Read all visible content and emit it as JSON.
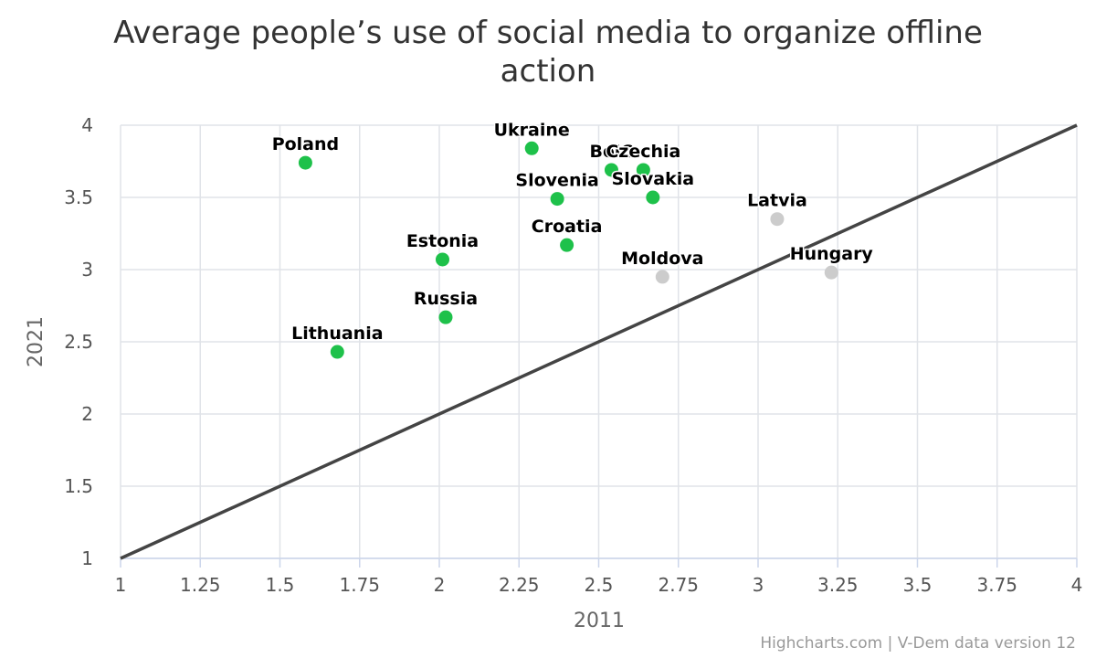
{
  "chart_data": {
    "type": "scatter",
    "title": "Average people’s use of social media to organize offline action",
    "xlabel": "2011",
    "ylabel": "2021",
    "xlim": [
      1,
      4
    ],
    "ylim": [
      1,
      4
    ],
    "x_ticks": [
      "1",
      "1.25",
      "1.5",
      "1.75",
      "2",
      "2.25",
      "2.5",
      "2.75",
      "3",
      "3.25",
      "3.5",
      "3.75",
      "4"
    ],
    "y_ticks": [
      "1",
      "1.5",
      "2",
      "2.5",
      "3",
      "3.5",
      "4"
    ],
    "grid": true,
    "reference_line": {
      "from": [
        1,
        1
      ],
      "to": [
        4,
        4
      ],
      "color": "#444444"
    },
    "colors": {
      "above": "#1ec14a",
      "below": "#cccccc"
    },
    "points": [
      {
        "label": "Poland",
        "x": 1.58,
        "y": 3.74,
        "group": "above"
      },
      {
        "label": "Ukraine",
        "x": 2.29,
        "y": 3.84,
        "group": "above"
      },
      {
        "label": "Belarus",
        "display_label": "BelC",
        "x": 2.54,
        "y": 3.69,
        "group": "above"
      },
      {
        "label": "Czechia",
        "x": 2.64,
        "y": 3.69,
        "group": "above"
      },
      {
        "label": "Slovenia",
        "x": 2.37,
        "y": 3.49,
        "group": "above"
      },
      {
        "label": "Slovakia",
        "x": 2.67,
        "y": 3.5,
        "group": "above"
      },
      {
        "label": "Croatia",
        "x": 2.4,
        "y": 3.17,
        "group": "above"
      },
      {
        "label": "Estonia",
        "x": 2.01,
        "y": 3.07,
        "group": "above"
      },
      {
        "label": "Russia",
        "x": 2.02,
        "y": 2.67,
        "group": "above"
      },
      {
        "label": "Lithuania",
        "x": 1.68,
        "y": 2.43,
        "group": "above"
      },
      {
        "label": "Latvia",
        "x": 3.06,
        "y": 3.35,
        "group": "below"
      },
      {
        "label": "Moldova",
        "x": 2.7,
        "y": 2.95,
        "group": "below"
      },
      {
        "label": "Hungary",
        "x": 3.23,
        "y": 2.98,
        "group": "below"
      }
    ]
  },
  "credits": "Highcharts.com | V-Dem data version 12"
}
